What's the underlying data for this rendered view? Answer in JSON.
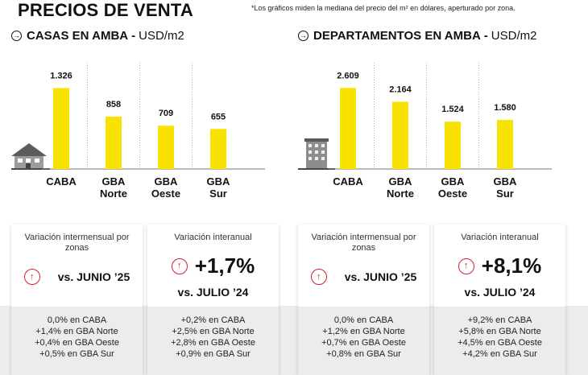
{
  "title": "PRECIOS DE VENTA",
  "footnote": "*Los gráficos miden la mediana del precio del m² en dólares, aperturado por zona.",
  "colors": {
    "bar": "#f7e200",
    "accent_red": "#d3202f",
    "gray_band": "#ececec"
  },
  "casas": {
    "title": "CASAS EN AMBA",
    "unit": "USD/m2",
    "icon": "house-icon"
  },
  "departamentos": {
    "title": "DEPARTAMENTOS EN AMBA",
    "unit": "USD/m2",
    "icon": "building-icon"
  },
  "chart_data": [
    {
      "type": "bar",
      "title": "CASAS EN AMBA - USD/m2",
      "categories": [
        "CABA",
        "GBA Norte",
        "GBA Oeste",
        "GBA Sur"
      ],
      "category_lines": [
        [
          "CABA"
        ],
        [
          "GBA",
          "Norte"
        ],
        [
          "GBA",
          "Oeste"
        ],
        [
          "GBA",
          "Sur"
        ]
      ],
      "values": [
        1326,
        858,
        709,
        655
      ],
      "value_labels": [
        "1.326",
        "858",
        "709",
        "655"
      ],
      "ylim": [
        0,
        1450
      ],
      "xlabel": "",
      "ylabel": "USD/m2",
      "grid": false
    },
    {
      "type": "bar",
      "title": "DEPARTAMENTOS EN AMBA - USD/m2",
      "categories": [
        "CABA",
        "GBA Norte",
        "GBA Oeste",
        "GBA Sur"
      ],
      "category_lines": [
        [
          "CABA"
        ],
        [
          "GBA",
          "Norte"
        ],
        [
          "GBA",
          "Oeste"
        ],
        [
          "GBA",
          "Sur"
        ]
      ],
      "values": [
        2609,
        2164,
        1524,
        1580
      ],
      "value_labels": [
        "2.609",
        "2.164",
        "1.524",
        "1.580"
      ],
      "ylim": [
        0,
        2850
      ],
      "xlabel": "",
      "ylabel": "USD/m2",
      "grid": false
    }
  ],
  "cards": [
    {
      "label": "Variación intermensual por zonas",
      "vs": "vs. JUNIO ’25",
      "lines": [
        "0,0% en CABA",
        "+1,4% en GBA Norte",
        "+0,4% en GBA Oeste",
        "+0,5% en GBA Sur"
      ]
    },
    {
      "label": "Variación interanual",
      "value": "+1,7%",
      "vs": "vs. JULIO ’24",
      "lines": [
        "+0,2% en CABA",
        "+2,5% en GBA Norte",
        "+2,8% en GBA Oeste",
        "+0,9% en GBA Sur"
      ]
    },
    {
      "label": "Variación intermensual por zonas",
      "vs": "vs. JUNIO ’25",
      "lines": [
        "0,0% en CABA",
        "+1,2% en GBA Norte",
        "+0,7% en GBA Oeste",
        "+0,8% en GBA Sur"
      ]
    },
    {
      "label": "Variación interanual",
      "value": "+8,1%",
      "vs": "vs. JULIO ’24",
      "lines": [
        "+9,2% en CABA",
        "+5,8% en GBA Norte",
        "+4,5% en GBA Oeste",
        "+4,2% en GBA Sur"
      ]
    }
  ]
}
